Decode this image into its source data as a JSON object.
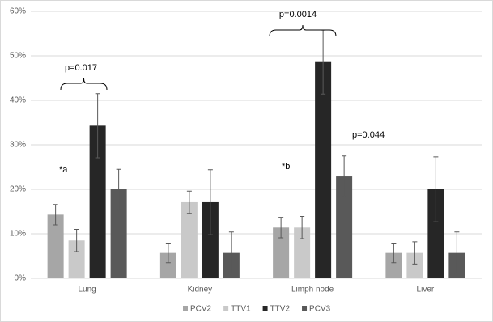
{
  "chart_data": {
    "type": "bar",
    "categories": [
      "Lung",
      "Kidney",
      "Limph node",
      "Liver"
    ],
    "series": [
      {
        "name": "PCV2",
        "color": "#a6a6a6",
        "values": [
          14.3,
          5.7,
          11.4,
          5.7
        ],
        "errors": [
          2.3,
          2.2,
          2.3,
          2.2
        ]
      },
      {
        "name": "TTV1",
        "color": "#c9c9c9",
        "values": [
          8.5,
          17.1,
          11.4,
          5.7
        ],
        "errors": [
          2.5,
          2.5,
          2.5,
          2.5
        ]
      },
      {
        "name": "TTV2",
        "color": "#262626",
        "values": [
          34.3,
          17.1,
          48.6,
          20
        ],
        "errors": [
          7.2,
          7.3,
          7.2,
          7.3
        ]
      },
      {
        "name": "PCV3",
        "color": "#595959",
        "values": [
          20,
          5.7,
          22.9,
          5.7
        ],
        "errors": [
          4.5,
          4.7,
          4.6,
          4.7
        ]
      }
    ],
    "ylim": [
      0,
      60
    ],
    "yticks": [
      {
        "value": 0,
        "label": "0%"
      },
      {
        "value": 10,
        "label": "10%"
      },
      {
        "value": 20,
        "label": "20%"
      },
      {
        "value": 30,
        "label": "30%"
      },
      {
        "value": 40,
        "label": "40%"
      },
      {
        "value": 50,
        "label": "50%"
      },
      {
        "value": 60,
        "label": "60%"
      }
    ],
    "grid": true,
    "annotations": [
      "p=0.017",
      "p=0.0014",
      "p=0.044",
      "*a",
      "*b"
    ]
  }
}
